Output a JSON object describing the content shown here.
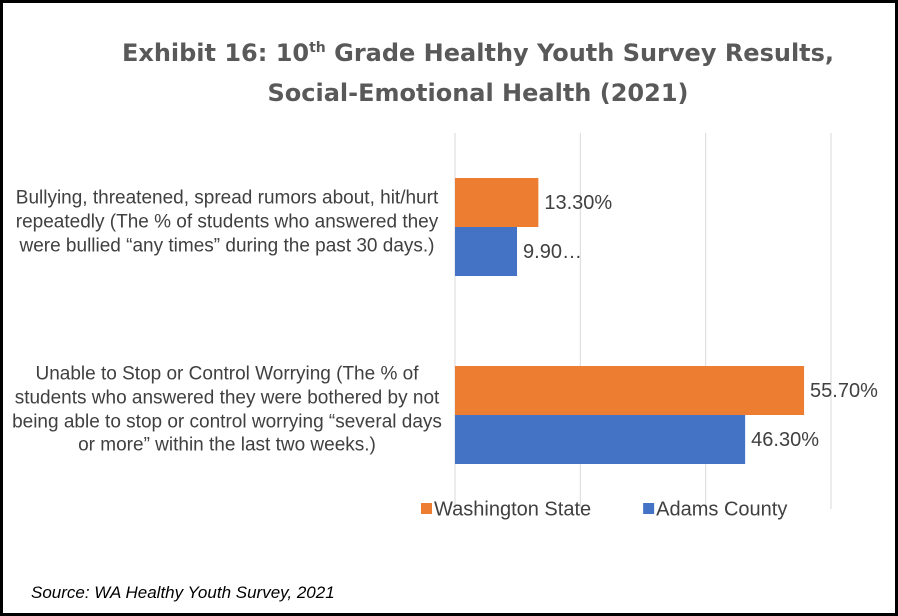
{
  "chart_data": {
    "type": "hbar",
    "title": [
      [
        "Exhibit 16: 10",
        "th",
        " Grade Healthy Youth Survey Results,"
      ],
      [
        "Social-Emotional Health (2021)"
      ]
    ],
    "categories": [
      "Bullying, threatened, spread rumors about, hit/hurt repeatedly (The % of students who answered they were bullied “any times” during the past 30 days.)",
      "Unable to Stop or Control Worrying (The % of students who answered they were bothered by not being able to stop or control worrying “several days or more” within the last two weeks.)"
    ],
    "series": [
      {
        "name": "Washington State",
        "color": "#ed7d31",
        "values": [
          13.3,
          55.7
        ],
        "value_labels": [
          "13.30%",
          "55.70%"
        ]
      },
      {
        "name": "Adams County",
        "color": "#4472c4",
        "values": [
          9.9,
          46.3
        ],
        "value_labels": [
          "9.90…",
          "46.30%"
        ]
      }
    ],
    "xlim": [
      0,
      60
    ],
    "xticks": [
      0,
      20,
      40,
      60
    ],
    "grid": true,
    "source": "Source: WA Healthy Youth Survey, 2021"
  }
}
